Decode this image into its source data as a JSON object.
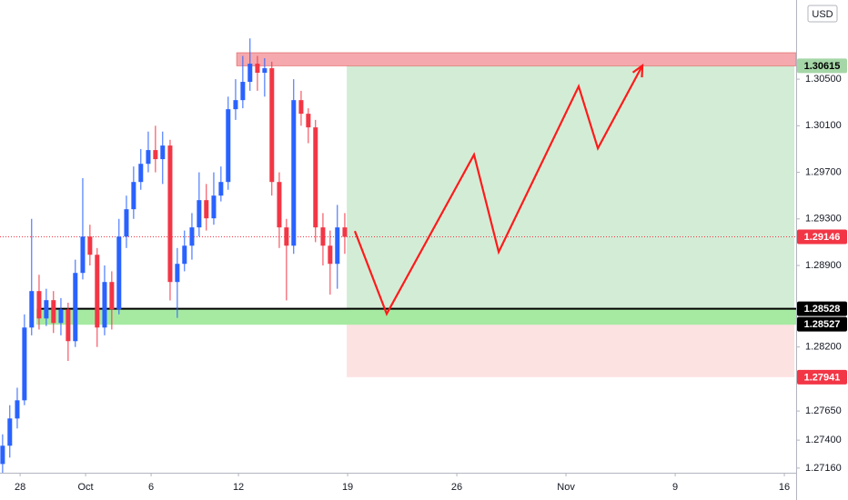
{
  "chart_data": {
    "type": "candlestick",
    "currency": "USD",
    "up_color": "#2962ff",
    "down_color": "#f23645",
    "xlim": [
      -0.92,
      35.54
    ],
    "ylim": [
      1.2712,
      1.3118
    ],
    "xticks": [
      {
        "value": 0,
        "label": "28"
      },
      {
        "value": 3,
        "label": "Oct"
      },
      6,
      {
        "value": 10,
        "label": "12"
      },
      {
        "value": 15,
        "label": "19"
      },
      {
        "value": 20,
        "label": "26"
      },
      {
        "value": 25,
        "label": "Nov"
      },
      {
        "value": 30,
        "label": "9"
      },
      {
        "value": 35,
        "label": "16"
      }
    ],
    "yticks": [
      {
        "value": 1.305,
        "label": "1.30500"
      },
      {
        "value": 1.301,
        "label": "1.30100"
      },
      {
        "value": 1.297,
        "label": "1.29700"
      },
      {
        "value": 1.293,
        "label": "1.29300"
      },
      {
        "value": 1.289,
        "label": "1.28900"
      },
      {
        "value": 1.282,
        "label": "1.28200"
      },
      {
        "value": 1.2765,
        "label": "1.27650"
      },
      {
        "value": 1.274,
        "label": "1.27400"
      },
      {
        "value": 1.2716,
        "label": "1.27160"
      }
    ],
    "x": [
      -0.8,
      -0.47,
      -0.13,
      0.2,
      0.53,
      0.87,
      1.2,
      1.53,
      1.87,
      2.2,
      2.53,
      2.87,
      3.2,
      3.53,
      3.87,
      4.2,
      4.53,
      4.87,
      5.2,
      5.53,
      5.87,
      6.2,
      6.53,
      6.87,
      7.2,
      7.53,
      7.87,
      8.2,
      8.53,
      8.87,
      9.2,
      9.53,
      9.87,
      10.2,
      10.53,
      10.87,
      11.2,
      11.53,
      11.87,
      12.2,
      12.53,
      12.87,
      13.2,
      13.53,
      13.87,
      14.2,
      14.53,
      14.87
    ],
    "ohlc": [
      [
        1.27195,
        1.2745,
        1.2712,
        1.27352
      ],
      [
        1.27352,
        1.277,
        1.2725,
        1.27586
      ],
      [
        1.27586,
        1.2785,
        1.275,
        1.27742
      ],
      [
        1.27742,
        1.2848,
        1.277,
        1.28367
      ],
      [
        1.28367,
        1.293,
        1.283,
        1.2868
      ],
      [
        1.2868,
        1.2882,
        1.2835,
        1.28445
      ],
      [
        1.28445,
        1.287,
        1.2838,
        1.28602
      ],
      [
        1.28602,
        1.2868,
        1.2832,
        1.28406
      ],
      [
        1.28406,
        1.2862,
        1.283,
        1.28523
      ],
      [
        1.28523,
        1.2858,
        1.2808,
        1.2825
      ],
      [
        1.2825,
        1.2895,
        1.282,
        1.28836
      ],
      [
        1.28836,
        1.2965,
        1.2878,
        1.29148
      ],
      [
        1.29148,
        1.2925,
        1.289,
        1.28992
      ],
      [
        1.28992,
        1.2905,
        1.282,
        1.28367
      ],
      [
        1.28367,
        1.289,
        1.283,
        1.28758
      ],
      [
        1.28758,
        1.2885,
        1.2835,
        1.28523
      ],
      [
        1.28523,
        1.293,
        1.2848,
        1.29148
      ],
      [
        1.29148,
        1.295,
        1.2905,
        1.29383
      ],
      [
        1.29383,
        1.2975,
        1.293,
        1.29617
      ],
      [
        1.29617,
        1.299,
        1.2955,
        1.29773
      ],
      [
        1.29773,
        1.3005,
        1.297,
        1.29891
      ],
      [
        1.29891,
        1.301,
        1.297,
        1.29813
      ],
      [
        1.29813,
        1.3005,
        1.296,
        1.2993
      ],
      [
        1.2993,
        1.2998,
        1.286,
        1.28758
      ],
      [
        1.28758,
        1.2905,
        1.2845,
        1.28914
      ],
      [
        1.28914,
        1.292,
        1.2885,
        1.2907
      ],
      [
        1.2907,
        1.2935,
        1.2895,
        1.29227
      ],
      [
        1.29227,
        1.297,
        1.2915,
        1.29461
      ],
      [
        1.29461,
        1.296,
        1.292,
        1.29305
      ],
      [
        1.29305,
        1.297,
        1.2925,
        1.295
      ],
      [
        1.295,
        1.2975,
        1.2945,
        1.29617
      ],
      [
        1.29617,
        1.3035,
        1.2955,
        1.30242
      ],
      [
        1.30242,
        1.305,
        1.3015,
        1.3032
      ],
      [
        1.3032,
        1.307,
        1.3025,
        1.30477
      ],
      [
        1.30477,
        1.3085,
        1.304,
        1.30633
      ],
      [
        1.30633,
        1.307,
        1.304,
        1.30555
      ],
      [
        1.30555,
        1.3068,
        1.3035,
        1.30594
      ],
      [
        1.30594,
        1.3065,
        1.295,
        1.29617
      ],
      [
        1.29617,
        1.297,
        1.2905,
        1.29227
      ],
      [
        1.29227,
        1.293,
        1.286,
        1.2907
      ],
      [
        1.2907,
        1.305,
        1.29,
        1.3032
      ],
      [
        1.3032,
        1.304,
        1.301,
        1.30203
      ],
      [
        1.30203,
        1.3025,
        1.2995,
        1.30086
      ],
      [
        1.30086,
        1.3015,
        1.291,
        1.29227
      ],
      [
        1.29227,
        1.2935,
        1.289,
        1.2907
      ],
      [
        1.2907,
        1.292,
        1.2865,
        1.28914
      ],
      [
        1.28914,
        1.2942,
        1.287,
        1.29227
      ],
      [
        1.29227,
        1.2935,
        1.29,
        1.29146
      ]
    ],
    "zones": [
      {
        "xlim": [
          14.96,
          35.46
        ],
        "ylim": [
          1.28528,
          1.30615
        ],
        "color": "#d3ecd6"
      },
      {
        "xlim": [
          14.96,
          35.46
        ],
        "ylim": [
          1.27941,
          1.28528
        ],
        "color": "#fde2e2"
      },
      {
        "xlim": [
          9.92,
          35.54
        ],
        "ylim": [
          1.30615,
          1.30727
        ],
        "color": "#f5a9ae"
      },
      {
        "xlim": [
          0.75,
          35.54
        ],
        "ylim": [
          1.28391,
          1.28528
        ],
        "color": "#a6eaa2"
      }
    ],
    "levels": [
      {
        "value": 1.29146,
        "color": "#f23645",
        "style": "dotted",
        "xlim": [
          -0.92,
          35.54
        ]
      },
      {
        "value": 1.28528,
        "color": "#000000",
        "style": "solid",
        "xlim": [
          0.88,
          35.54
        ]
      }
    ],
    "projection": {
      "color": "#ff1a1a",
      "x": [
        15.33,
        16.79,
        20.79,
        21.92,
        25.58,
        26.46,
        28.5
      ],
      "y": [
        1.29195,
        1.28484,
        1.29852,
        1.29016,
        1.30438,
        1.29906,
        1.30617
      ]
    },
    "price_labels": [
      {
        "value": 1.30615,
        "label": "1.30615",
        "color": "#a5d6a7",
        "text_color": "#000000"
      },
      {
        "value": 1.29146,
        "label": "1.29146",
        "color": "#f23645",
        "text_color": "#ffffff"
      },
      {
        "value": 1.28528,
        "label": "1.28528",
        "color": "#000000",
        "text_color": "#ffffff"
      },
      {
        "value": 1.28527,
        "label": "1.28527",
        "color": "#000000",
        "text_color": "#ffffff"
      },
      {
        "value": 1.27941,
        "label": "1.27941",
        "color": "#f23645",
        "text_color": "#ffffff"
      }
    ]
  }
}
